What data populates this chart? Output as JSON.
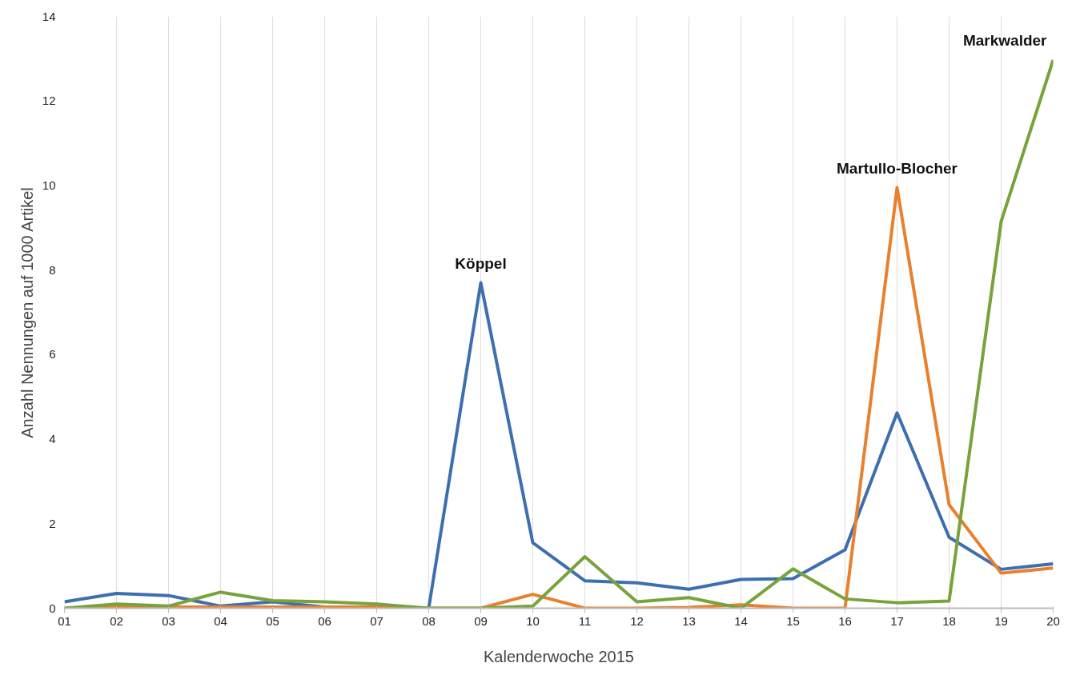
{
  "chart_data": {
    "type": "line",
    "xlabel": "Kalenderwoche 2015",
    "ylabel": "Anzahl Nennungen auf 1000 Artikel",
    "categories": [
      "01",
      "02",
      "03",
      "04",
      "05",
      "06",
      "07",
      "08",
      "09",
      "10",
      "11",
      "12",
      "13",
      "14",
      "15",
      "16",
      "17",
      "18",
      "19",
      "20"
    ],
    "series": [
      {
        "name": "Köppel",
        "color": "#3d6fb0",
        "values": [
          0.15,
          0.35,
          0.3,
          0.05,
          0.15,
          0.03,
          0.03,
          0,
          7.7,
          1.55,
          0.65,
          0.6,
          0.45,
          0.68,
          0.7,
          1.38,
          4.62,
          1.68,
          0.92,
          1.05
        ]
      },
      {
        "name": "Martullo-Blocher",
        "color": "#e8802e",
        "values": [
          0,
          0.03,
          0.03,
          0.03,
          0.03,
          0.03,
          0.03,
          0,
          0,
          0.33,
          0,
          0,
          0.02,
          0.08,
          0,
          0,
          9.95,
          2.45,
          0.83,
          0.95
        ]
      },
      {
        "name": "Markwalder",
        "color": "#78a33b",
        "values": [
          0,
          0.1,
          0.05,
          0.38,
          0.18,
          0.15,
          0.1,
          0,
          0,
          0.05,
          1.22,
          0.15,
          0.25,
          0,
          0.93,
          0.22,
          0.13,
          0.17,
          9.15,
          12.97
        ]
      }
    ],
    "ylim": [
      0,
      14
    ],
    "yticks": [
      0,
      2,
      4,
      6,
      8,
      10,
      12,
      14
    ],
    "grid": "x",
    "marker": "none",
    "line_style": "solid"
  }
}
